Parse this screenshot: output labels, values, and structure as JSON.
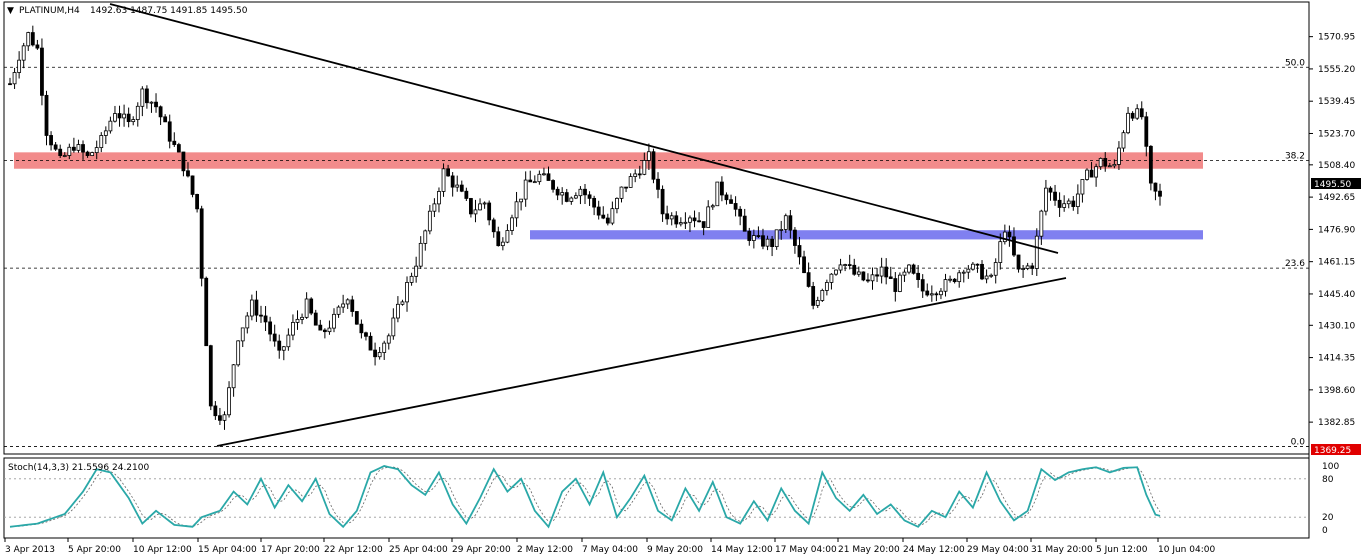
{
  "header": {
    "menu_icon": "triangle-down-icon",
    "symbol": "PLATINUM,H4",
    "ohlc": "1492.63 1487.75 1491.85 1495.50"
  },
  "chart_data": [
    {
      "type": "candlestick",
      "title": "PLATINUM,H4",
      "ylim": [
        1369.25,
        1582
      ],
      "y_ticks": [
        "1570.95",
        "1555.20",
        "1539.45",
        "1523.70",
        "1508.40",
        "1492.65",
        "1476.90",
        "1461.15",
        "1445.40",
        "1430.10",
        "1414.35",
        "1398.60",
        "1382.85"
      ],
      "x_ticks": [
        "3 Apr 2013",
        "5 Apr 20:00",
        "10 Apr 12:00",
        "15 Apr 04:00",
        "17 Apr 20:00",
        "22 Apr 12:00",
        "25 Apr 04:00",
        "29 Apr 20:00",
        "2 May 12:00",
        "7 May 04:00",
        "9 May 20:00",
        "14 May 12:00",
        "17 May 04:00",
        "21 May 20:00",
        "24 May 12:00",
        "29 May 04:00",
        "31 May 20:00",
        "5 Jun 12:00",
        "10 Jun 04:00"
      ],
      "current_price": "1495.50",
      "low_marker": "1369.25",
      "fib_levels": [
        {
          "label": "50.0",
          "value": 1556
        },
        {
          "label": "38.2",
          "value": 1510.5
        },
        {
          "label": "23.6",
          "value": 1458
        },
        {
          "label": "0.0",
          "value": 1371
        }
      ],
      "zones": [
        {
          "name": "resistance",
          "low": 1506.5,
          "high": 1514.5,
          "color": "#f28b8b"
        },
        {
          "name": "support",
          "low": 1472,
          "high": 1476.5,
          "color": "#8080f0"
        }
      ],
      "trendlines": [
        {
          "name": "descending",
          "from": [
            0,
            1585
          ],
          "to": [
            216,
            1460
          ]
        },
        {
          "name": "ascending",
          "from": [
            40,
            1370
          ],
          "to": [
            216,
            1451
          ]
        }
      ],
      "anchors": [
        [
          0,
          1548
        ],
        [
          2,
          1562
        ],
        [
          4,
          1572
        ],
        [
          6,
          1565
        ],
        [
          8,
          1525
        ],
        [
          11,
          1510
        ],
        [
          14,
          1518
        ],
        [
          17,
          1512
        ],
        [
          20,
          1520
        ],
        [
          23,
          1535
        ],
        [
          26,
          1528
        ],
        [
          29,
          1544
        ],
        [
          32,
          1537
        ],
        [
          35,
          1522
        ],
        [
          38,
          1508
        ],
        [
          41,
          1487
        ],
        [
          44,
          1390
        ],
        [
          47,
          1385
        ],
        [
          50,
          1425
        ],
        [
          53,
          1440
        ],
        [
          56,
          1432
        ],
        [
          59,
          1415
        ],
        [
          62,
          1430
        ],
        [
          65,
          1440
        ],
        [
          68,
          1425
        ],
        [
          71,
          1433
        ],
        [
          74,
          1445
        ],
        [
          77,
          1425
        ],
        [
          80,
          1417
        ],
        [
          83,
          1425
        ],
        [
          86,
          1444
        ],
        [
          89,
          1461
        ],
        [
          92,
          1483
        ],
        [
          95,
          1505
        ],
        [
          98,
          1497
        ],
        [
          101,
          1486
        ],
        [
          104,
          1490
        ],
        [
          107,
          1468
        ],
        [
          110,
          1485
        ],
        [
          113,
          1498
        ],
        [
          116,
          1503
        ],
        [
          119,
          1498
        ],
        [
          122,
          1493
        ],
        [
          125,
          1497
        ],
        [
          128,
          1488
        ],
        [
          131,
          1480
        ],
        [
          134,
          1496
        ],
        [
          137,
          1504
        ],
        [
          140,
          1512
        ],
        [
          143,
          1485
        ],
        [
          146,
          1482
        ],
        [
          149,
          1484
        ],
        [
          152,
          1480
        ],
        [
          155,
          1497
        ],
        [
          158,
          1492
        ],
        [
          161,
          1475
        ],
        [
          164,
          1471
        ],
        [
          167,
          1470
        ],
        [
          170,
          1482
        ],
        [
          173,
          1462
        ],
        [
          176,
          1440
        ],
        [
          179,
          1453
        ],
        [
          182,
          1462
        ],
        [
          185,
          1455
        ],
        [
          188,
          1451
        ],
        [
          191,
          1457
        ],
        [
          194,
          1449
        ],
        [
          197,
          1457
        ],
        [
          200,
          1447
        ],
        [
          203,
          1448
        ],
        [
          206,
          1451
        ],
        [
          209,
          1459
        ],
        [
          212,
          1457
        ],
        [
          215,
          1452
        ],
        [
          218,
          1478
        ],
        [
          221,
          1456
        ],
        [
          224,
          1460
        ],
        [
          227,
          1497
        ],
        [
          230,
          1490
        ],
        [
          233,
          1490
        ],
        [
          236,
          1503
        ],
        [
          239,
          1510
        ],
        [
          242,
          1507
        ],
        [
          245,
          1535
        ],
        [
          248,
          1532
        ],
        [
          250,
          1497
        ],
        [
          252,
          1492
        ]
      ]
    },
    {
      "type": "line",
      "title": "Stoch(14,3,3) 21.5596 24.2100",
      "ylim": [
        0,
        100
      ],
      "levels": [
        "100",
        "80",
        "20",
        "0"
      ],
      "series": [
        {
          "name": "%K",
          "color": "#2aa8a8",
          "anchors": [
            [
              0,
              5
            ],
            [
              6,
              10
            ],
            [
              12,
              25
            ],
            [
              16,
              60
            ],
            [
              19,
              95
            ],
            [
              22,
              90
            ],
            [
              26,
              50
            ],
            [
              29,
              10
            ],
            [
              32,
              30
            ],
            [
              36,
              8
            ],
            [
              40,
              5
            ],
            [
              42,
              20
            ],
            [
              46,
              30
            ],
            [
              49,
              60
            ],
            [
              52,
              40
            ],
            [
              55,
              80
            ],
            [
              58,
              35
            ],
            [
              61,
              70
            ],
            [
              64,
              45
            ],
            [
              67,
              80
            ],
            [
              70,
              25
            ],
            [
              73,
              5
            ],
            [
              76,
              30
            ],
            [
              79,
              90
            ],
            [
              82,
              100
            ],
            [
              85,
              95
            ],
            [
              88,
              70
            ],
            [
              91,
              55
            ],
            [
              94,
              90
            ],
            [
              97,
              40
            ],
            [
              100,
              10
            ],
            [
              103,
              50
            ],
            [
              106,
              95
            ],
            [
              109,
              60
            ],
            [
              112,
              80
            ],
            [
              115,
              30
            ],
            [
              118,
              5
            ],
            [
              121,
              60
            ],
            [
              124,
              80
            ],
            [
              127,
              40
            ],
            [
              130,
              90
            ],
            [
              133,
              20
            ],
            [
              136,
              50
            ],
            [
              139,
              85
            ],
            [
              142,
              30
            ],
            [
              145,
              15
            ],
            [
              148,
              65
            ],
            [
              151,
              30
            ],
            [
              154,
              75
            ],
            [
              157,
              20
            ],
            [
              160,
              10
            ],
            [
              163,
              45
            ],
            [
              166,
              15
            ],
            [
              169,
              65
            ],
            [
              172,
              30
            ],
            [
              175,
              10
            ],
            [
              178,
              90
            ],
            [
              181,
              50
            ],
            [
              184,
              30
            ],
            [
              187,
              55
            ],
            [
              190,
              25
            ],
            [
              193,
              40
            ],
            [
              196,
              15
            ],
            [
              199,
              5
            ],
            [
              202,
              30
            ],
            [
              205,
              20
            ],
            [
              208,
              60
            ],
            [
              211,
              35
            ],
            [
              214,
              90
            ],
            [
              217,
              45
            ],
            [
              220,
              15
            ],
            [
              223,
              30
            ],
            [
              226,
              95
            ],
            [
              229,
              78
            ],
            [
              232,
              90
            ],
            [
              235,
              95
            ],
            [
              238,
              98
            ],
            [
              241,
              90
            ],
            [
              244,
              97
            ],
            [
              247,
              98
            ],
            [
              249,
              55
            ],
            [
              251,
              24
            ],
            [
              253,
              20
            ]
          ]
        }
      ]
    }
  ]
}
